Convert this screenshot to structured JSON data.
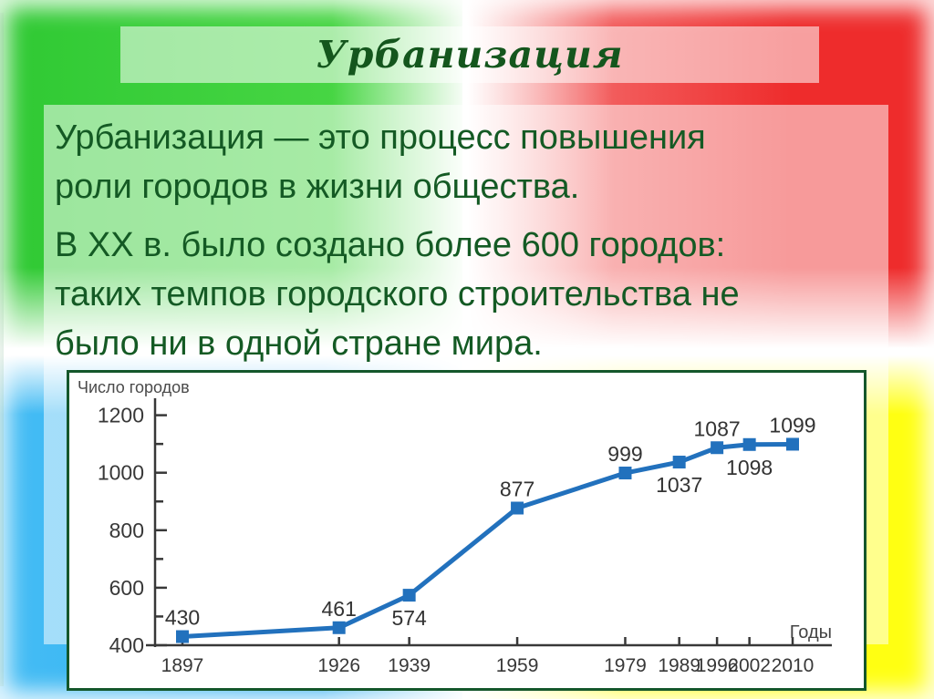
{
  "slide": {
    "title": "Урбанизация",
    "paragraphs": [
      {
        "lines": [
          "Урбанизация — это процесс повышения",
          "роли городов в жизни общества."
        ]
      },
      {
        "lines": [
          "В ХХ в. было создано более 600 городов:",
          "таких темпов городского строительства не",
          "было ни в одной стране мира."
        ]
      }
    ]
  },
  "colors": {
    "quad_green": "#3ed23a",
    "quad_red": "#ee2f2f",
    "quad_blue": "#36b2f2",
    "quad_yellow": "#ffff14",
    "title_green": "#14561d",
    "text_green": "#145a24",
    "chart_border_green": "#14572b",
    "line_blue": "#2271bd",
    "axis_gray": "#383838"
  },
  "chart_data": {
    "type": "line",
    "title": "Число городов",
    "xlabel": "Годы",
    "x": [
      1897,
      1926,
      1939,
      1959,
      1979,
      1989,
      1996,
      2002,
      2010
    ],
    "values": [
      430,
      461,
      574,
      877,
      999,
      1037,
      1087,
      1098,
      1099
    ],
    "label_positions": [
      "above",
      "above",
      "below",
      "above",
      "above",
      "below",
      "above",
      "below",
      "above"
    ],
    "xlim": [
      1890,
      2018
    ],
    "ylim": [
      400,
      1250
    ],
    "yticks_major": [
      400,
      600,
      800,
      1000,
      1200
    ],
    "yticks_minor": [
      500,
      700,
      900,
      1100
    ],
    "grid": false,
    "legend": false,
    "line_color": "#2271bd",
    "marker": "square",
    "label_color": "#333333"
  }
}
